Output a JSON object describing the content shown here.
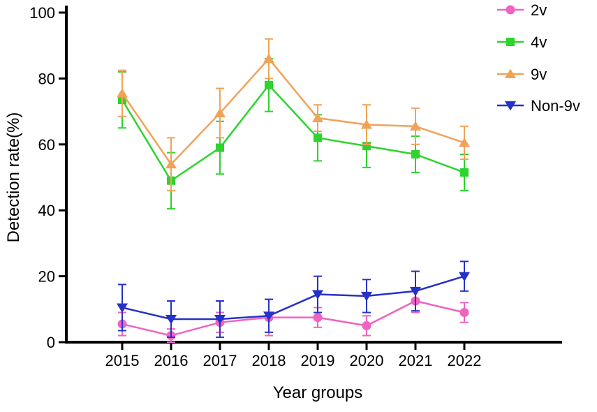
{
  "figure": {
    "background": "#ffffff",
    "text_color": "#000000"
  },
  "chart_data": {
    "type": "line",
    "title": "",
    "xlabel": "Year groups",
    "ylabel": "Detection rate(%)",
    "x": [
      "2015",
      "2016",
      "2017",
      "2018",
      "2019",
      "2020",
      "2021",
      "2022"
    ],
    "ylim": [
      0,
      100
    ],
    "yticks": [
      0,
      20,
      40,
      60,
      80,
      100
    ],
    "grid": false,
    "legend_position": "top-right",
    "error_bars": true,
    "series": [
      {
        "name": "2v",
        "marker": "circle",
        "color": "#ef63c1",
        "values": [
          5.5,
          2,
          6,
          7.5,
          7.5,
          5,
          12.5,
          9
        ],
        "errors": [
          3.5,
          2,
          3,
          5.5,
          3,
          3,
          3.5,
          3
        ]
      },
      {
        "name": "4v",
        "marker": "square",
        "color": "#2ed32e",
        "values": [
          73.5,
          49,
          59,
          78,
          62,
          59.5,
          57,
          51.5
        ],
        "errors": [
          8.5,
          8.5,
          8,
          8,
          7,
          6.5,
          5.5,
          5.5
        ]
      },
      {
        "name": "9v",
        "marker": "triangle-up",
        "color": "#f0a358",
        "values": [
          75.5,
          54,
          69.5,
          86,
          68,
          66,
          65.5,
          60.5
        ],
        "errors": [
          7,
          8,
          7.5,
          6,
          4,
          6,
          5.5,
          5
        ]
      },
      {
        "name": "Non-9v",
        "marker": "triangle-down",
        "color": "#2631c8",
        "values": [
          10.5,
          7,
          7,
          8,
          14.5,
          14,
          15.5,
          20
        ],
        "errors": [
          7,
          5.5,
          5.5,
          5,
          5.5,
          5,
          6,
          4.5
        ]
      }
    ]
  }
}
